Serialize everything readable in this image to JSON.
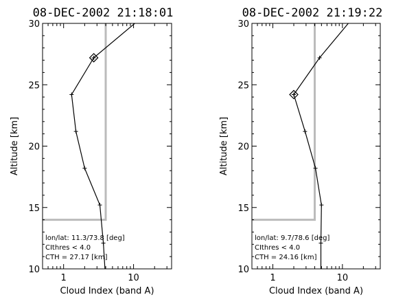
{
  "chart_data": [
    {
      "type": "line",
      "title": "08-DEC-2002 21:18:01",
      "xlabel": "Cloud Index (band A)",
      "ylabel": "Altitude [km]",
      "xscale": "log",
      "xlim": [
        0.5,
        35
      ],
      "ylim": [
        10,
        30
      ],
      "xticks": [
        {
          "value": 1,
          "label": "1"
        },
        {
          "value": 10,
          "label": "10"
        }
      ],
      "yticks": [
        {
          "value": 10,
          "label": "10"
        },
        {
          "value": 15,
          "label": "15"
        },
        {
          "value": 20,
          "label": "20"
        },
        {
          "value": 25,
          "label": "25"
        },
        {
          "value": 30,
          "label": "30"
        }
      ],
      "series": [
        {
          "color": "#000000",
          "marker": "plus",
          "points": [
            {
              "x": 3.9,
              "y": 10
            },
            {
              "x": 3.7,
              "y": 12.1
            },
            {
              "x": 3.3,
              "y": 15.2
            },
            {
              "x": 2.0,
              "y": 18.2
            },
            {
              "x": 1.5,
              "y": 21.2
            },
            {
              "x": 1.3,
              "y": 24.2
            },
            {
              "x": 2.7,
              "y": 27.2
            },
            {
              "x": 11.5,
              "y": 30.2
            }
          ]
        }
      ],
      "threshold_line": {
        "color": "#bbbbbb",
        "points": [
          {
            "x": 0.5,
            "y": 14
          },
          {
            "x": 4.0,
            "y": 14
          },
          {
            "x": 4.0,
            "y": 30
          }
        ]
      },
      "highlight": {
        "marker": "diamond",
        "x": 2.7,
        "y": 27.2
      },
      "annotations": [
        "lon/lat: 11.3/73.8 [deg]",
        "CIthres < 4.0",
        "CTH = 27.17 [km]"
      ]
    },
    {
      "type": "line",
      "title": "08-DEC-2002 21:19:22",
      "xlabel": "Cloud Index (band A)",
      "ylabel": "Altitude [km]",
      "xscale": "log",
      "xlim": [
        0.5,
        35
      ],
      "ylim": [
        10,
        30
      ],
      "xticks": [
        {
          "value": 1,
          "label": "1"
        },
        {
          "value": 10,
          "label": "10"
        }
      ],
      "yticks": [
        {
          "value": 10,
          "label": "10"
        },
        {
          "value": 15,
          "label": "15"
        },
        {
          "value": 20,
          "label": "20"
        },
        {
          "value": 25,
          "label": "25"
        },
        {
          "value": 30,
          "label": "30"
        }
      ],
      "series": [
        {
          "color": "#000000",
          "marker": "plus",
          "points": [
            {
              "x": 4.9,
              "y": 10
            },
            {
              "x": 4.9,
              "y": 12.1
            },
            {
              "x": 5.0,
              "y": 15.2
            },
            {
              "x": 4.1,
              "y": 18.2
            },
            {
              "x": 2.9,
              "y": 21.2
            },
            {
              "x": 2.0,
              "y": 24.2
            },
            {
              "x": 4.7,
              "y": 27.2
            },
            {
              "x": 13.0,
              "y": 30.2
            }
          ]
        }
      ],
      "threshold_line": {
        "color": "#bbbbbb",
        "points": [
          {
            "x": 0.5,
            "y": 14
          },
          {
            "x": 4.0,
            "y": 14
          },
          {
            "x": 4.0,
            "y": 30
          }
        ]
      },
      "highlight": {
        "marker": "diamond",
        "x": 2.0,
        "y": 24.2
      },
      "annotations": [
        "lon/lat: 9.7/78.6 [deg]",
        "CIthres < 4.0",
        "CTH = 24.16 [km]"
      ]
    }
  ]
}
